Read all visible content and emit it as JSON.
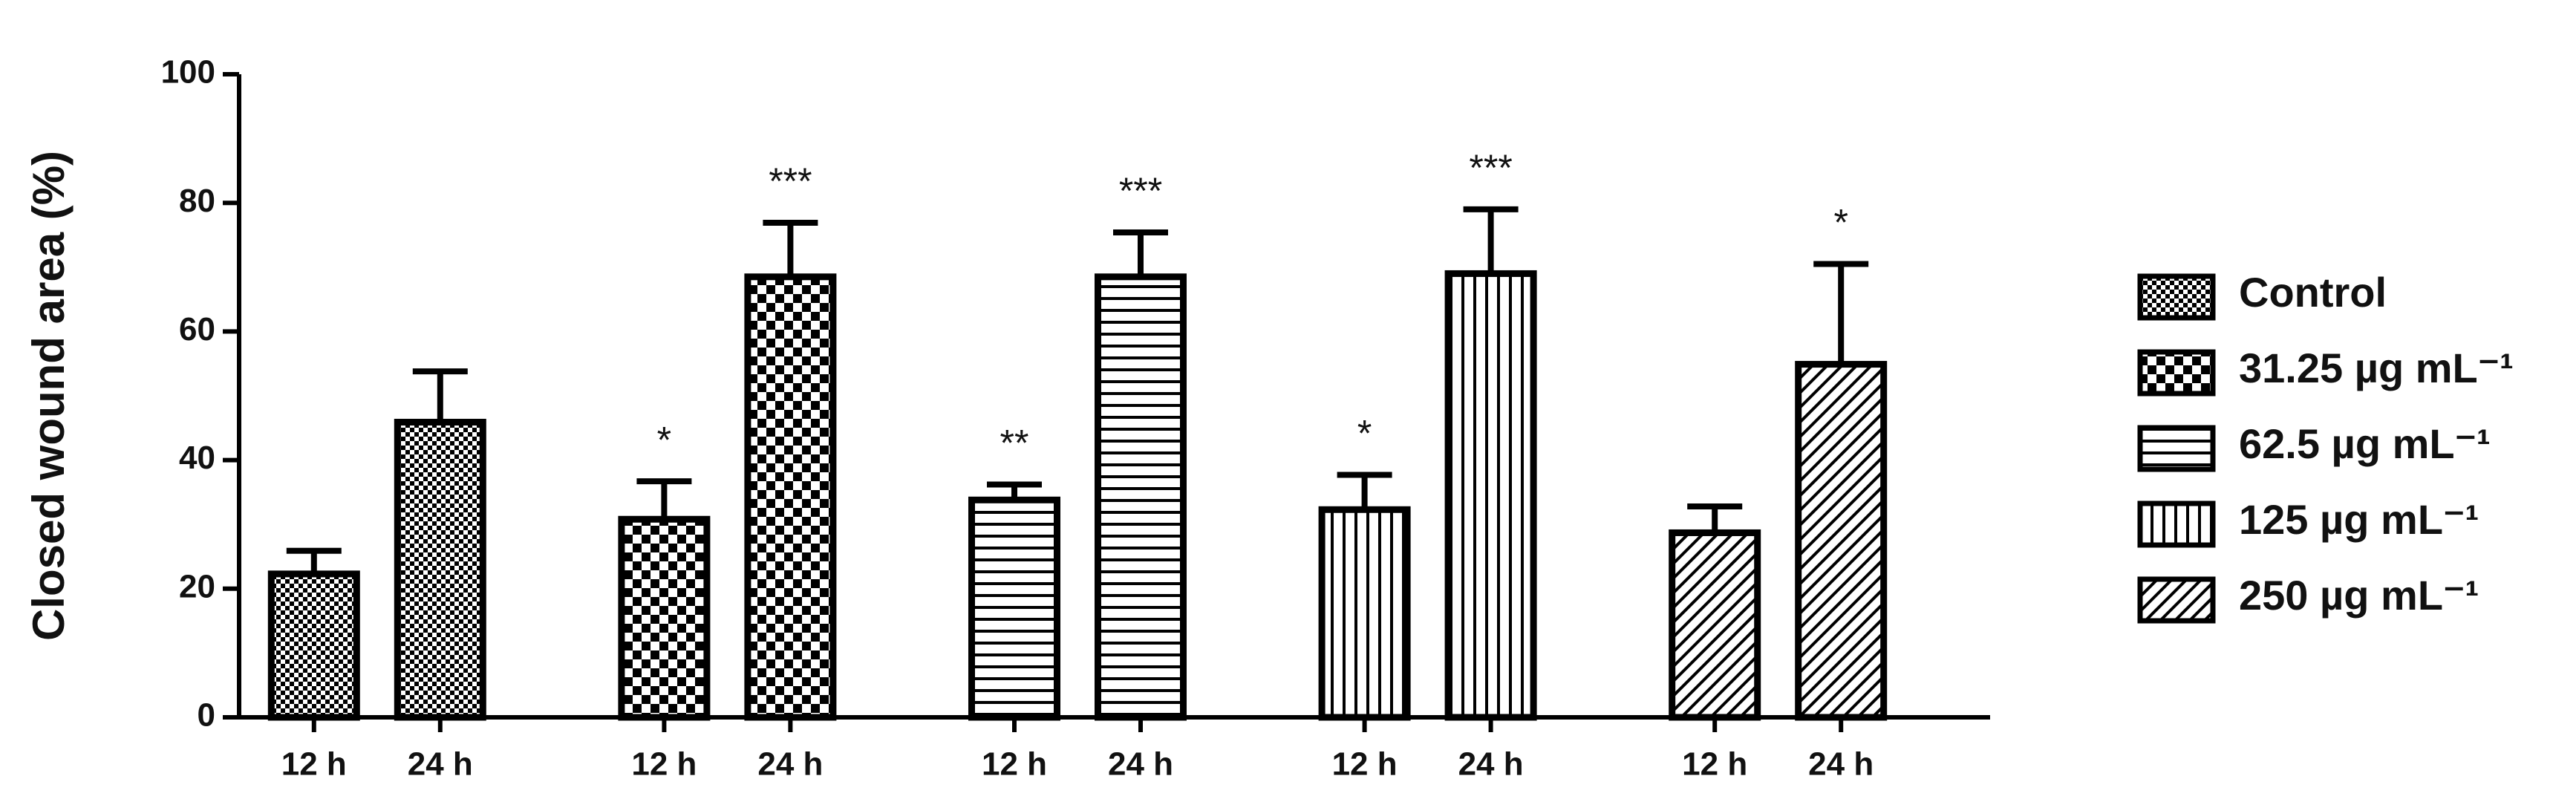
{
  "chart_data": {
    "type": "bar",
    "y_label": "Closed wound area (%)",
    "categories": [
      "12 h",
      "24 h"
    ],
    "ylim": [
      0,
      100
    ],
    "yticks": [
      0,
      20,
      40,
      60,
      80,
      100
    ],
    "color": "#000000",
    "legend": "right",
    "series": [
      {
        "name": "Control",
        "pattern": "fine-checker",
        "values": [
          22.3,
          45.9
        ],
        "errors": [
          3.6,
          7.9
        ],
        "annotations": [
          null,
          null
        ]
      },
      {
        "name": "31.25 µg mL⁻¹",
        "pattern": "checker",
        "values": [
          30.8,
          68.5
        ],
        "errors": [
          5.9,
          8.4
        ],
        "annotations": [
          "*",
          "***"
        ]
      },
      {
        "name": "62.5 µg mL⁻¹",
        "pattern": "horizontal",
        "values": [
          33.8,
          68.5
        ],
        "errors": [
          2.4,
          6.9
        ],
        "annotations": [
          "**",
          "***"
        ]
      },
      {
        "name": "125 µg mL⁻¹",
        "pattern": "vertical",
        "values": [
          32.3,
          69.0
        ],
        "errors": [
          5.4,
          10.0
        ],
        "annotations": [
          "*",
          "***"
        ]
      },
      {
        "name": "250 µg mL⁻¹",
        "pattern": "diagonal",
        "values": [
          28.7,
          54.9
        ],
        "errors": [
          4.1,
          15.6
        ],
        "annotations": [
          null,
          "*"
        ]
      }
    ]
  }
}
